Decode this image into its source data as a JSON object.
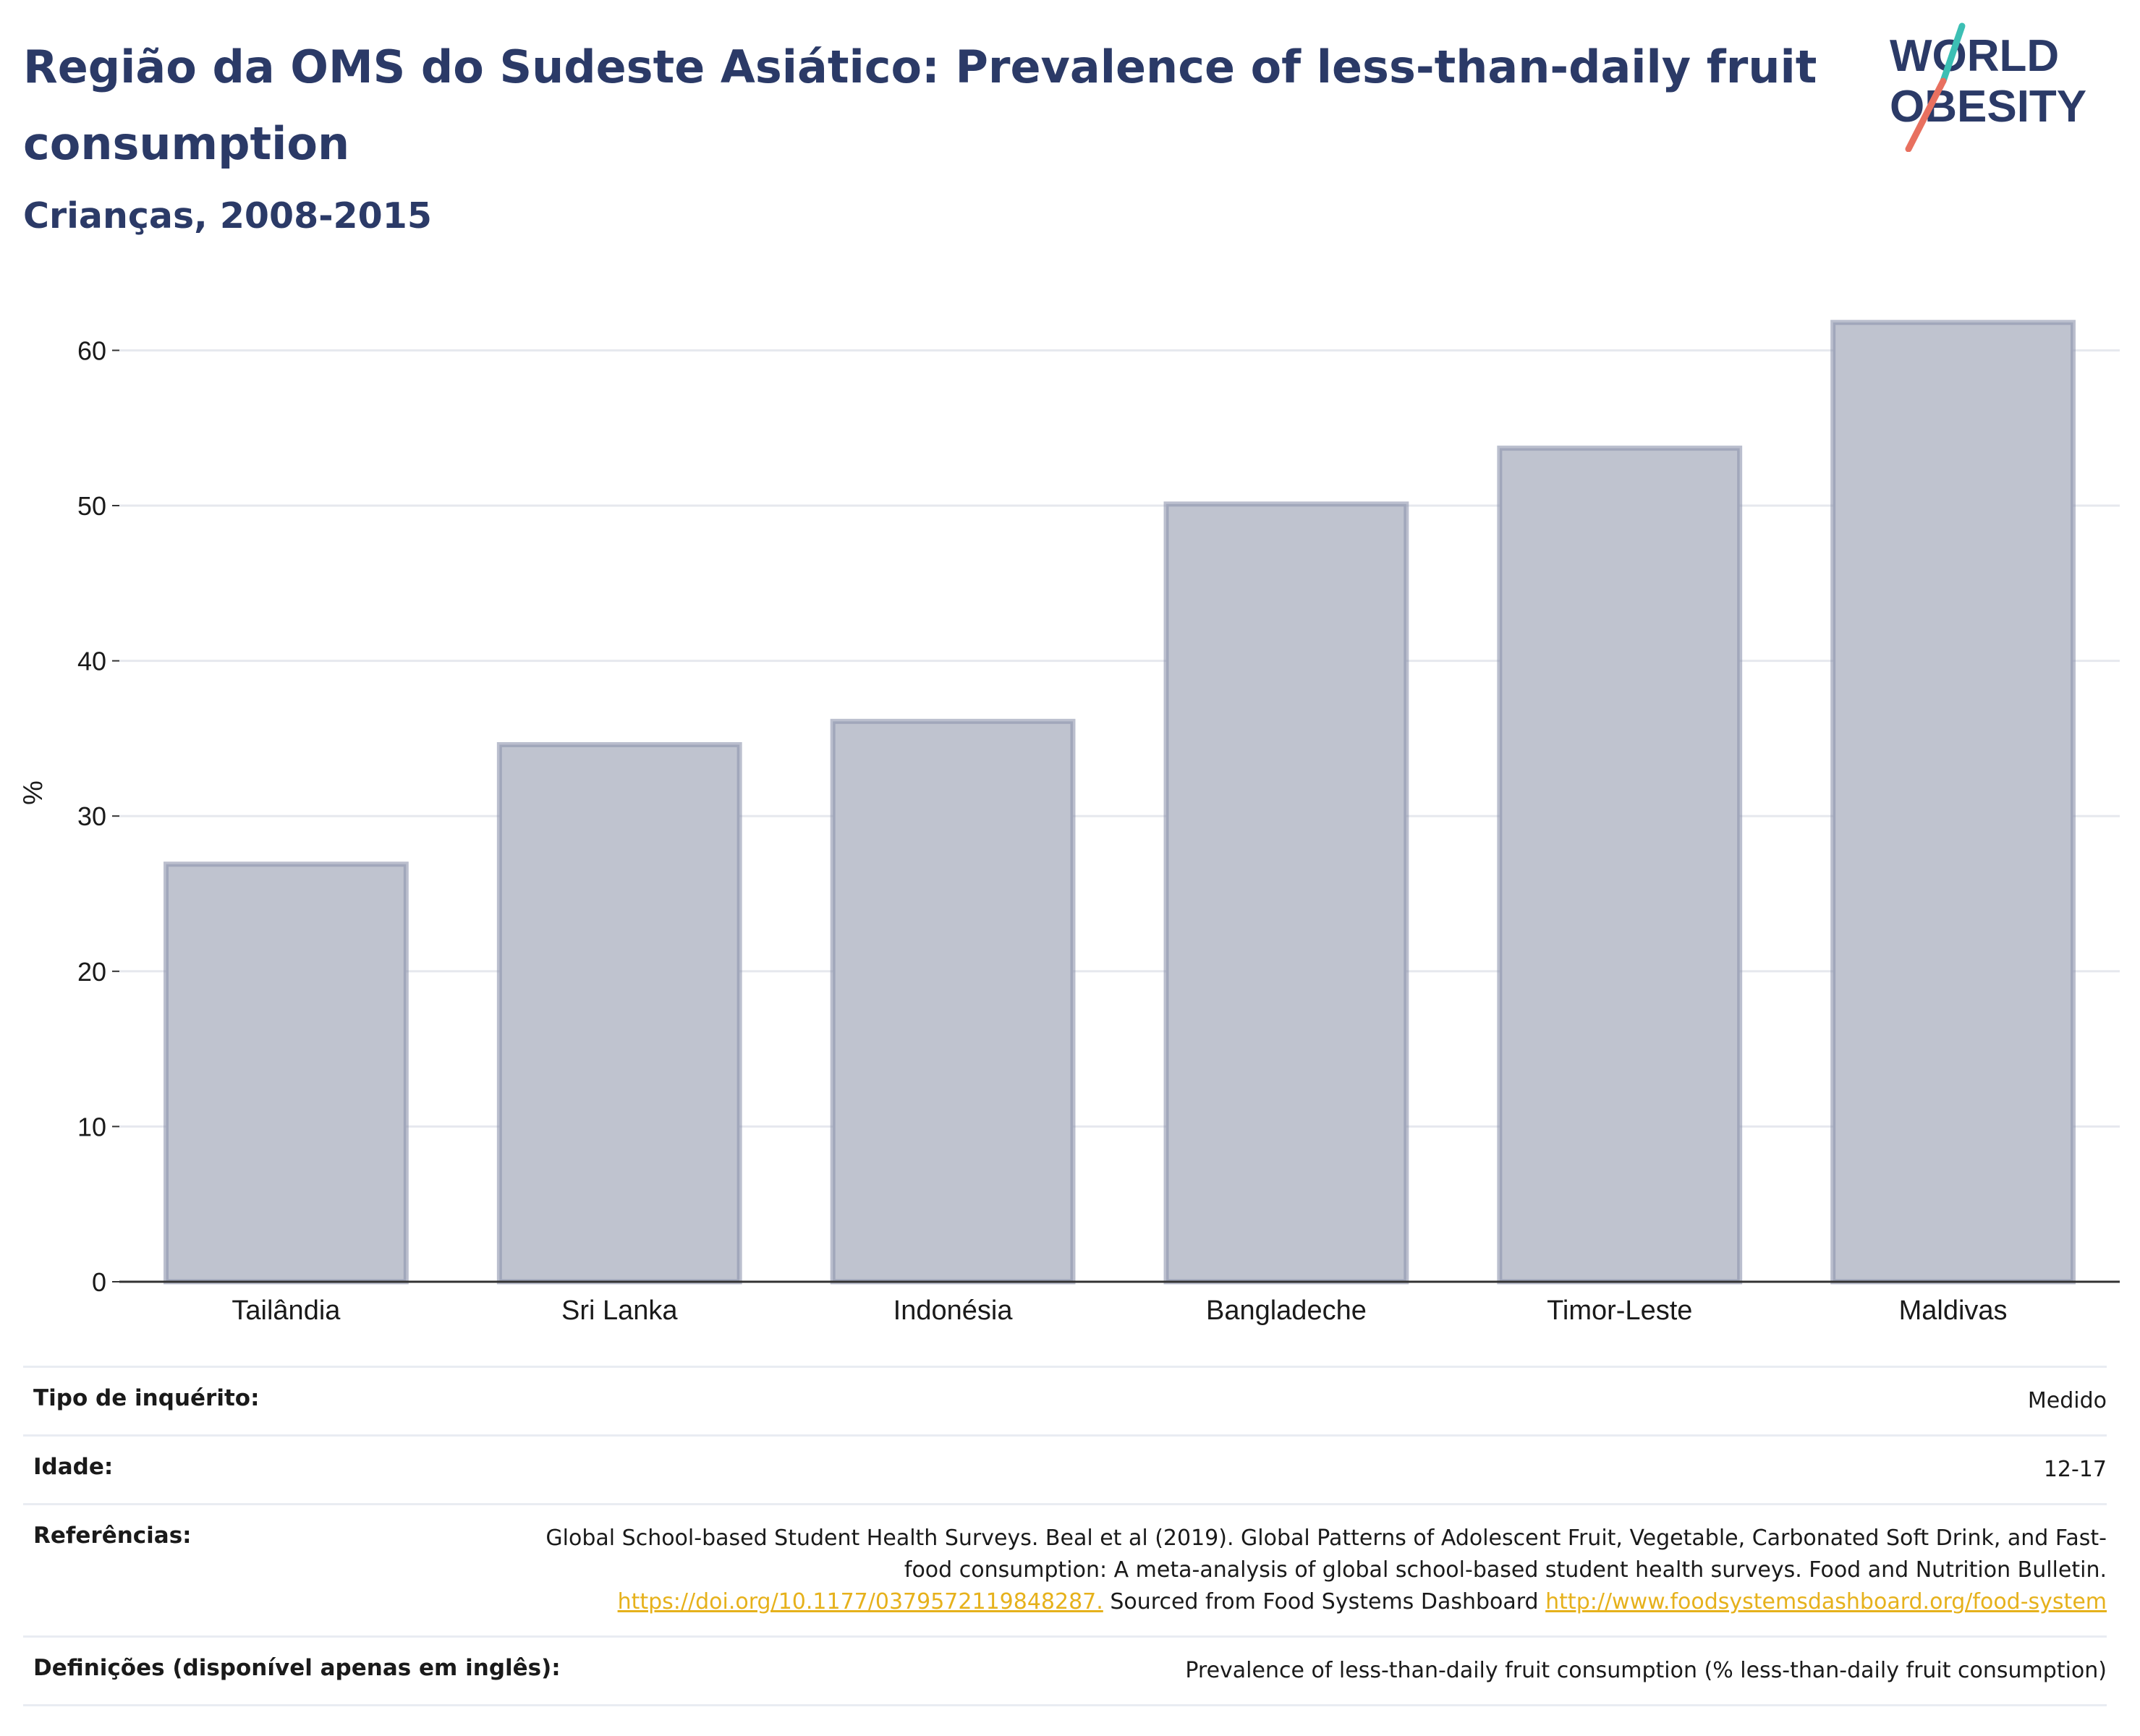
{
  "header": {
    "title": "Região da OMS do Sudeste Asiático: Prevalence of less-than-daily fruit consumption",
    "subtitle": "Crianças, 2008-2015"
  },
  "logo": {
    "line1": "WORLD",
    "line2": "OBESITY",
    "colors": {
      "text": "#2b3a67",
      "slash_teal": "#3cbfb4",
      "slash_coral": "#e8705f"
    }
  },
  "chart_data": {
    "type": "bar",
    "title": "",
    "xlabel": "",
    "ylabel": "%",
    "ylim": [
      0,
      63
    ],
    "yticks": [
      0,
      10,
      20,
      30,
      40,
      50,
      60
    ],
    "grid": true,
    "categories": [
      "Tailândia",
      "Sri Lanka",
      "Indonésia",
      "Bangladeche",
      "Timor-Leste",
      "Maldivas"
    ],
    "values": [
      26.9,
      34.6,
      36.1,
      50.1,
      53.7,
      61.8
    ],
    "colors": {
      "bar_fill": "#bfc3cf",
      "bar_stroke": "#8d94ad",
      "grid": "#e6e8ee",
      "axis": "#333333"
    }
  },
  "meta": {
    "survey_type": {
      "label": "Tipo de inquérito:",
      "value": "Medido"
    },
    "age": {
      "label": "Idade:",
      "value": "12-17"
    },
    "references": {
      "label": "Referências:",
      "text1": "Global School-based Student Health Surveys. Beal et al (2019). Global Patterns of Adolescent Fruit, Vegetable, Carbonated Soft Drink, and Fast-food consumption: A meta-analysis of global school-based student health surveys. Food and Nutrition Bulletin.",
      "link1": "https://doi.org/10.1177/0379572119848287.",
      "text2": "Sourced from Food Systems Dashboard",
      "link2": "http://www.foodsystemsdashboard.org/food-system"
    },
    "definitions": {
      "label": "Definições (disponível apenas em inglês):",
      "value": "Prevalence of less-than-daily fruit consumption (% less-than-daily fruit consumption)"
    }
  }
}
